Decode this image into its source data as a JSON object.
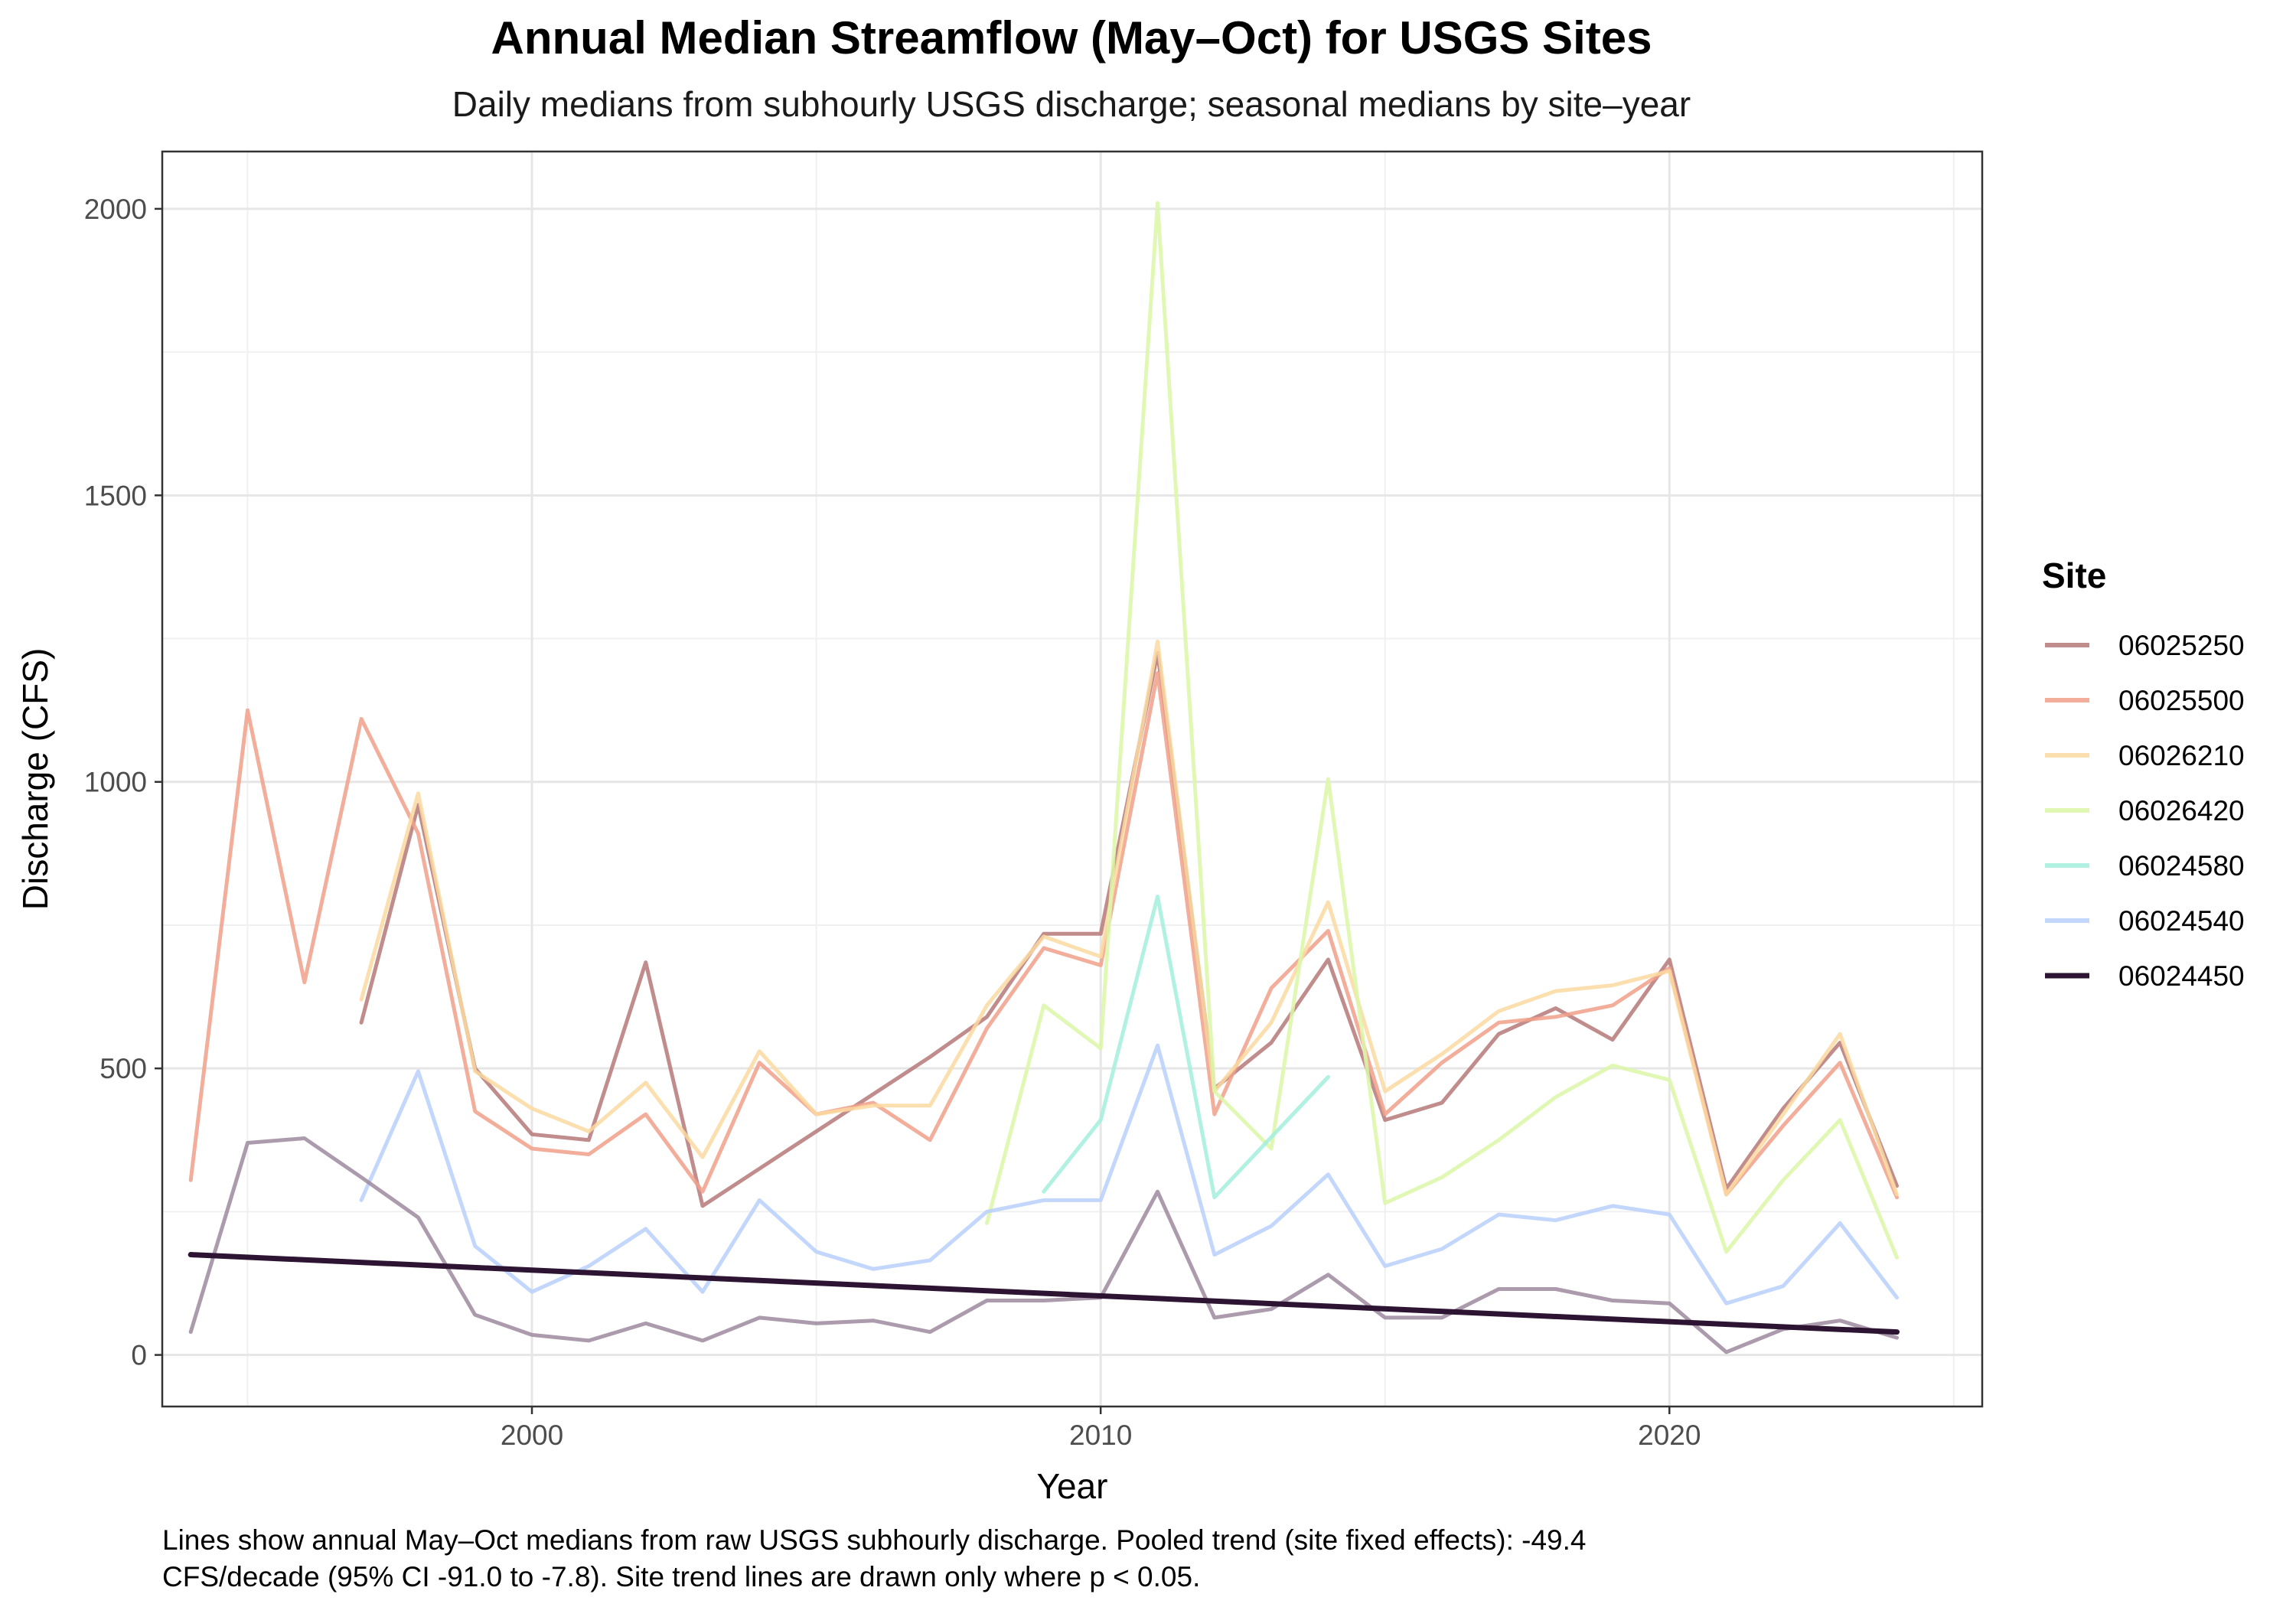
{
  "chart_data": {
    "type": "line",
    "title": "Annual Median Streamflow (May–Oct) for USGS Sites",
    "subtitle": "Daily medians from subhourly USGS discharge; seasonal medians by site–year",
    "xlabel": "Year",
    "ylabel": "Discharge (CFS)",
    "xlim": [
      1993.5,
      2025.5
    ],
    "ylim": [
      -90,
      2100
    ],
    "x_ticks": [
      2000,
      2010,
      2020
    ],
    "y_ticks": [
      0,
      500,
      1000,
      1500,
      2000
    ],
    "grid": true,
    "legend": {
      "title": "Site",
      "position": "right"
    },
    "caption_lines": [
      "Lines show annual May–Oct medians from raw USGS subhourly discharge. Pooled trend (site fixed effects): -49.4",
      "CFS/decade (95% CI -91.0 to -7.8). Site trend lines are drawn only where p < 0.05."
    ],
    "series": [
      {
        "name": "06025250",
        "color": "#b57878",
        "x": [
          1997,
          1998,
          1999,
          2000,
          2001,
          2002,
          2003,
          2004,
          2005,
          2006,
          2007,
          2008,
          2009,
          2010,
          2011,
          2012,
          2013,
          2014,
          2015,
          2016,
          2017,
          2018,
          2019,
          2020,
          2021,
          2022,
          2023,
          2024
        ],
        "y": [
          580,
          960,
          500,
          385,
          375,
          685,
          260,
          325,
          390,
          455,
          520,
          590,
          735,
          735,
          1225,
          465,
          545,
          690,
          410,
          440,
          560,
          605,
          550,
          690,
          290,
          430,
          545,
          295
        ]
      },
      {
        "name": "06025500",
        "color": "#f0a08a",
        "x": [
          1994,
          1995,
          1996,
          1997,
          1998,
          1999,
          2000,
          2001,
          2002,
          2003,
          2004,
          2005,
          2006,
          2007,
          2008,
          2009,
          2010,
          2011,
          2012,
          2013,
          2014,
          2015,
          2016,
          2017,
          2018,
          2019,
          2020,
          2021,
          2022,
          2023,
          2024
        ],
        "y": [
          305,
          1125,
          650,
          1110,
          910,
          425,
          360,
          350,
          420,
          285,
          510,
          420,
          440,
          375,
          570,
          710,
          680,
          1190,
          420,
          640,
          740,
          420,
          510,
          580,
          590,
          610,
          675,
          280,
          400,
          510,
          275
        ]
      },
      {
        "name": "06026210",
        "color": "#fcd9a0",
        "x": [
          1997,
          1998,
          1999,
          2000,
          2001,
          2002,
          2003,
          2004,
          2005,
          2006,
          2007,
          2008,
          2009,
          2010,
          2011,
          2012,
          2013,
          2014,
          2015,
          2016,
          2017,
          2018,
          2019,
          2020,
          2021,
          2022,
          2023,
          2024
        ],
        "y": [
          620,
          980,
          495,
          430,
          390,
          475,
          345,
          530,
          420,
          435,
          435,
          610,
          730,
          695,
          1245,
          460,
          580,
          790,
          460,
          525,
          600,
          635,
          645,
          670,
          280,
          420,
          560,
          280
        ]
      },
      {
        "name": "06026420",
        "color": "#dcf7a8",
        "x": [
          2008,
          2009,
          2010,
          2011,
          2012,
          2013,
          2014,
          2015,
          2016,
          2017,
          2018,
          2019,
          2020,
          2021,
          2022,
          2023,
          2024
        ],
        "y": [
          230,
          610,
          535,
          2010,
          460,
          360,
          1005,
          265,
          310,
          375,
          450,
          505,
          480,
          180,
          305,
          410,
          170
        ]
      },
      {
        "name": "06024580",
        "color": "#a3eedc",
        "x": [
          2009,
          2010,
          2011,
          2012,
          2013,
          2014
        ],
        "y": [
          285,
          410,
          800,
          275,
          380,
          485
        ]
      },
      {
        "name": "06024540",
        "color": "#b8cffa",
        "x": [
          1997,
          1998,
          1999,
          2000,
          2001,
          2002,
          2003,
          2004,
          2005,
          2006,
          2007,
          2008,
          2009,
          2010,
          2011,
          2012,
          2013,
          2014,
          2015,
          2016,
          2017,
          2018,
          2019,
          2020,
          2021,
          2022,
          2023,
          2024
        ],
        "y": [
          270,
          495,
          190,
          110,
          155,
          220,
          110,
          270,
          180,
          150,
          165,
          250,
          270,
          270,
          540,
          175,
          225,
          315,
          155,
          185,
          245,
          235,
          260,
          245,
          90,
          120,
          230,
          100
        ]
      },
      {
        "name": "06024450",
        "color": "#9c8a9d",
        "legend_color": "#2d1433",
        "x": [
          1994,
          1995,
          1996,
          1997,
          1998,
          1999,
          2000,
          2001,
          2002,
          2003,
          2004,
          2005,
          2006,
          2007,
          2008,
          2009,
          2010,
          2011,
          2012,
          2013,
          2014,
          2015,
          2016,
          2017,
          2018,
          2019,
          2020,
          2021,
          2022,
          2023,
          2024
        ],
        "y": [
          40,
          370,
          378,
          310,
          240,
          70,
          35,
          25,
          55,
          25,
          65,
          55,
          60,
          40,
          95,
          95,
          100,
          285,
          65,
          80,
          140,
          65,
          65,
          115,
          115,
          95,
          90,
          5,
          45,
          60,
          30
        ],
        "trend": {
          "x": [
            1994,
            2024
          ],
          "y": [
            175,
            40
          ],
          "color": "#2d1433"
        }
      }
    ]
  }
}
